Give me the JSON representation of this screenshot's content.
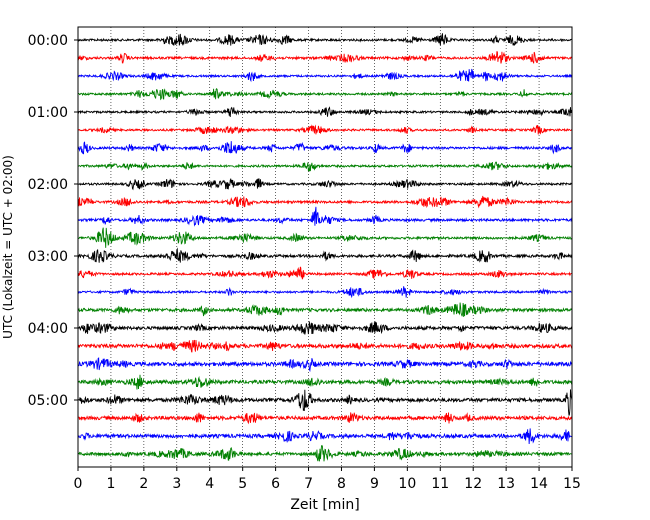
{
  "chart_data": {
    "type": "line",
    "title": "",
    "xlabel": "Zeit  [min]",
    "ylabel": "UTC (Lokalzeit = UTC + 02:00)",
    "xlim": [
      0,
      15
    ],
    "x_ticks": [
      "0",
      "1",
      "2",
      "3",
      "4",
      "5",
      "6",
      "7",
      "8",
      "9",
      "10",
      "11",
      "12",
      "13",
      "14",
      "15"
    ],
    "y_ticks": [
      "00:00",
      "01:00",
      "02:00",
      "03:00",
      "04:00",
      "05:00"
    ],
    "trace_count": 24,
    "trace_interval_min": 15,
    "trace_colors": [
      "#000000",
      "#ff0000",
      "#0000ff",
      "#008000"
    ],
    "grid": "vertical dotted lines at each minute",
    "legend": "none",
    "events": [
      {
        "trace": 10,
        "time_min": 7.2,
        "note": "large spike on 02:30 trace"
      },
      {
        "trace": 20,
        "time_min": 14.9,
        "note": "spike at end of 05:00 trace"
      }
    ]
  }
}
